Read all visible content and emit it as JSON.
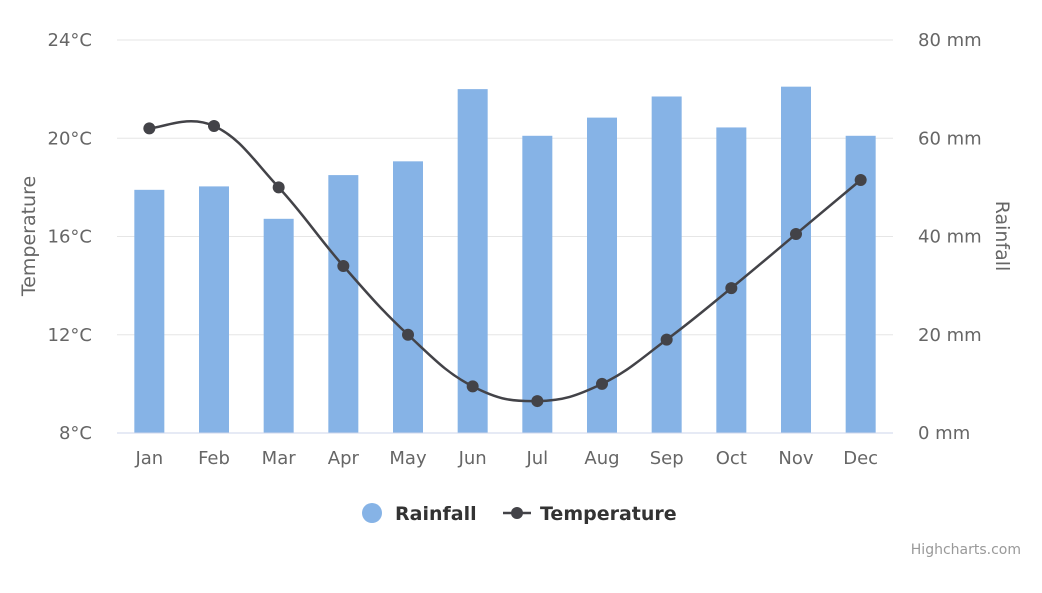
{
  "chart_data": {
    "type": "bar",
    "categories": [
      "Jan",
      "Feb",
      "Mar",
      "Apr",
      "May",
      "Jun",
      "Jul",
      "Aug",
      "Sep",
      "Oct",
      "Nov",
      "Dec"
    ],
    "series": [
      {
        "name": "Rainfall",
        "type": "bar",
        "axis": "right",
        "color": "#86b3e6",
        "values": [
          49.5,
          50.2,
          43.6,
          52.5,
          55.3,
          70.0,
          60.5,
          64.2,
          68.5,
          62.2,
          70.5,
          60.5
        ]
      },
      {
        "name": "Temperature",
        "type": "line",
        "axis": "left",
        "color": "#434348",
        "values": [
          20.4,
          20.5,
          18.0,
          14.8,
          12.0,
          9.9,
          9.3,
          10.0,
          11.8,
          13.9,
          16.1,
          18.3
        ]
      }
    ],
    "y_left": {
      "title": "Temperature",
      "range": [
        8,
        24
      ],
      "ticks": [
        8,
        12,
        16,
        20,
        24
      ],
      "tick_labels": [
        "8°C",
        "12°C",
        "16°C",
        "20°C",
        "24°C"
      ]
    },
    "y_right": {
      "title": "Rainfall",
      "range": [
        0,
        80
      ],
      "ticks": [
        0,
        20,
        40,
        60,
        80
      ],
      "tick_labels": [
        "0 mm",
        "20 mm",
        "40 mm",
        "60 mm",
        "80 mm"
      ]
    },
    "grid": true,
    "legend": {
      "placement": "bottom-center",
      "items": [
        "Rainfall",
        "Temperature"
      ]
    },
    "credits": "Highcharts.com"
  }
}
